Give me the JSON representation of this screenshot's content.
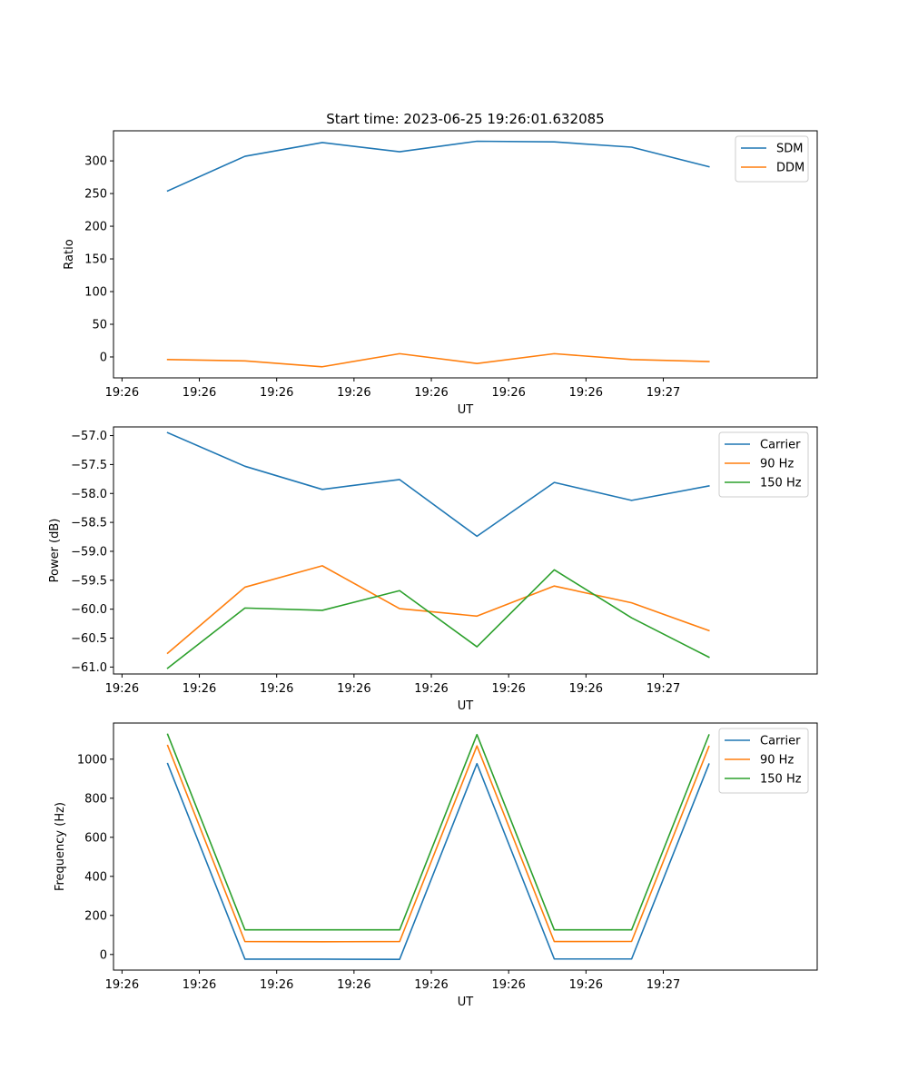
{
  "figure": {
    "title": "Start time: 2023-06-25 19:26:01.632085"
  },
  "chart_data": [
    {
      "type": "line",
      "title": "Start time: 2023-06-25 19:26:01.632085",
      "xlabel": "UT",
      "ylabel": "Ratio",
      "x_tick_labels": [
        "19:26",
        "19:26",
        "19:26",
        "19:26",
        "19:26",
        "19:26",
        "19:26"
      ],
      "x_end_tick_label": "19:27",
      "x_points": [
        1,
        2,
        3,
        4,
        5,
        6,
        7,
        8
      ],
      "xlim": [
        0.3,
        9.4
      ],
      "ylim": [
        -32,
        346
      ],
      "yticks": [
        0,
        50,
        100,
        150,
        200,
        250,
        300
      ],
      "legend": "top-right",
      "grid": false,
      "series": [
        {
          "name": "SDM",
          "color": "#1f77b4",
          "values": [
            254,
            307,
            328,
            314,
            330,
            329,
            321,
            291
          ]
        },
        {
          "name": "DDM",
          "color": "#ff7f0e",
          "values": [
            -4,
            -6,
            -15,
            5,
            -10,
            5,
            -4,
            -7
          ]
        }
      ]
    },
    {
      "type": "line",
      "xlabel": "UT",
      "ylabel": "Power (dB)",
      "x_tick_labels": [
        "19:26",
        "19:26",
        "19:26",
        "19:26",
        "19:26",
        "19:26",
        "19:26"
      ],
      "x_end_tick_label": "19:27",
      "x_points": [
        1,
        2,
        3,
        4,
        5,
        6,
        7,
        8
      ],
      "xlim": [
        0.3,
        9.4
      ],
      "ylim": [
        -61.12,
        -56.85
      ],
      "yticks": [
        -57.0,
        -57.5,
        -58.0,
        -58.5,
        -59.0,
        -59.5,
        -60.0,
        -60.5,
        -61.0
      ],
      "legend": "top-right",
      "grid": false,
      "series": [
        {
          "name": "Carrier",
          "color": "#1f77b4",
          "values": [
            -56.95,
            -57.53,
            -57.93,
            -57.76,
            -58.74,
            -57.81,
            -58.12,
            -57.87
          ]
        },
        {
          "name": "90 Hz",
          "color": "#ff7f0e",
          "values": [
            -60.76,
            -59.62,
            -59.25,
            -59.99,
            -60.12,
            -59.6,
            -59.89,
            -60.37
          ]
        },
        {
          "name": "150 Hz",
          "color": "#2ca02c",
          "values": [
            -61.02,
            -59.98,
            -60.02,
            -59.68,
            -60.65,
            -59.32,
            -60.15,
            -60.83
          ]
        }
      ]
    },
    {
      "type": "line",
      "xlabel": "UT",
      "ylabel": "Frequency (Hz)",
      "x_tick_labels": [
        "19:26",
        "19:26",
        "19:26",
        "19:26",
        "19:26",
        "19:26",
        "19:26"
      ],
      "x_end_tick_label": "19:27",
      "x_points": [
        1,
        2,
        3,
        4,
        5,
        6,
        7,
        8
      ],
      "xlim": [
        0.3,
        9.4
      ],
      "ylim": [
        -80,
        1185
      ],
      "yticks": [
        0,
        200,
        400,
        600,
        800,
        1000
      ],
      "legend": "top-right",
      "grid": false,
      "series": [
        {
          "name": "Carrier",
          "color": "#1f77b4",
          "values": [
            977,
            -24,
            -24,
            -25,
            977,
            -23,
            -23,
            975
          ]
        },
        {
          "name": "90 Hz",
          "color": "#ff7f0e",
          "values": [
            1070,
            66,
            65,
            66,
            1068,
            66,
            67,
            1065
          ]
        },
        {
          "name": "150 Hz",
          "color": "#2ca02c",
          "values": [
            1127,
            126,
            126,
            126,
            1126,
            126,
            126,
            1124
          ]
        }
      ]
    }
  ]
}
